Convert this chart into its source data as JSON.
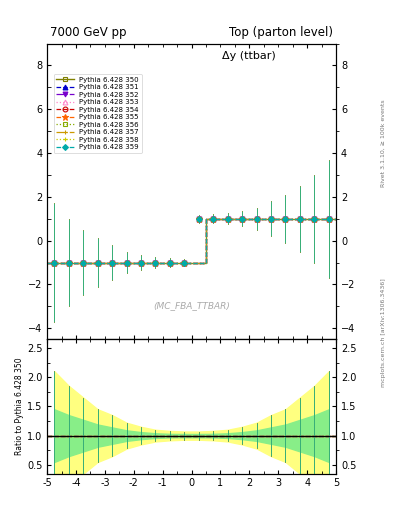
{
  "title_left": "7000 GeV pp",
  "title_right": "Top (parton level)",
  "plot_title": "Δy (ttbar)",
  "watermark": "(MC_FBA_TTBAR)",
  "right_label_top": "Rivet 3.1.10, ≥ 100k events",
  "right_label_bot": "mcplots.cern.ch [arXiv:1306.3436]",
  "ylabel_ratio": "Ratio to Pythia 6.428 350",
  "xlim": [
    -5,
    5
  ],
  "ylim_main": [
    -4.5,
    9.0
  ],
  "ylim_ratio": [
    0.35,
    2.65
  ],
  "yticks_main": [
    -4,
    -2,
    0,
    2,
    4,
    6,
    8
  ],
  "yticks_ratio": [
    0.5,
    1.0,
    1.5,
    2.0,
    2.5
  ],
  "xticks": [
    -5,
    -4,
    -3,
    -2,
    -1,
    0,
    1,
    2,
    3,
    4,
    5
  ],
  "series": [
    {
      "label": "Pythia 6.428 350",
      "color": "#808000",
      "lw": 1.0,
      "ls": "-",
      "marker": "s",
      "mfc": "none",
      "ms": 3.5,
      "mew": 0.8
    },
    {
      "label": "Pythia 6.428 351",
      "color": "#0000cc",
      "lw": 0.9,
      "ls": "--",
      "marker": "^",
      "mfc": "#0000cc",
      "ms": 3.5,
      "mew": 0.8
    },
    {
      "label": "Pythia 6.428 352",
      "color": "#7700cc",
      "lw": 0.9,
      "ls": "-.",
      "marker": "v",
      "mfc": "#7700cc",
      "ms": 3.5,
      "mew": 0.8
    },
    {
      "label": "Pythia 6.428 353",
      "color": "#ff88cc",
      "lw": 0.9,
      "ls": ":",
      "marker": "^",
      "mfc": "none",
      "ms": 3.5,
      "mew": 0.8
    },
    {
      "label": "Pythia 6.428 354",
      "color": "#cc0000",
      "lw": 0.9,
      "ls": "--",
      "marker": "o",
      "mfc": "none",
      "ms": 3.5,
      "mew": 0.8
    },
    {
      "label": "Pythia 6.428 355",
      "color": "#ff6600",
      "lw": 0.9,
      "ls": "--",
      "marker": "*",
      "mfc": "#ff6600",
      "ms": 4.5,
      "mew": 0.8
    },
    {
      "label": "Pythia 6.428 356",
      "color": "#88aa00",
      "lw": 0.9,
      "ls": ":",
      "marker": "s",
      "mfc": "none",
      "ms": 3.5,
      "mew": 0.8
    },
    {
      "label": "Pythia 6.428 357",
      "color": "#cc9900",
      "lw": 0.9,
      "ls": "-.",
      "marker": "+",
      "mfc": "#cc9900",
      "ms": 3.5,
      "mew": 0.8
    },
    {
      "label": "Pythia 6.428 358",
      "color": "#cccc00",
      "lw": 0.9,
      "ls": ":",
      "marker": "+",
      "mfc": "#cccc00",
      "ms": 3.5,
      "mew": 0.8
    },
    {
      "label": "Pythia 6.428 359",
      "color": "#00aaaa",
      "lw": 0.9,
      "ls": "--",
      "marker": "D",
      "mfc": "#00aaaa",
      "ms": 3.0,
      "mew": 0.8
    }
  ],
  "bin_edges": [
    -5.0,
    -4.5,
    -4.0,
    -3.5,
    -3.0,
    -2.5,
    -2.0,
    -1.5,
    -1.0,
    -0.5,
    0.0,
    0.5,
    1.0,
    1.5,
    2.0,
    2.5,
    3.0,
    3.5,
    4.0,
    4.5,
    5.0
  ],
  "main_values": [
    -1,
    -1,
    -1,
    -1,
    -1,
    -1,
    -1,
    -1,
    -1,
    -1,
    1,
    1,
    1,
    1,
    1,
    1,
    1,
    1,
    1,
    1
  ],
  "err_main": [
    2.7,
    2.0,
    1.5,
    1.1,
    0.8,
    0.5,
    0.35,
    0.25,
    0.2,
    0.18,
    0.18,
    0.2,
    0.25,
    0.35,
    0.5,
    0.8,
    1.1,
    1.5,
    2.0,
    2.7
  ],
  "err_ratio": [
    1.1,
    0.85,
    0.65,
    0.45,
    0.35,
    0.22,
    0.15,
    0.1,
    0.08,
    0.07,
    0.07,
    0.08,
    0.1,
    0.15,
    0.22,
    0.35,
    0.45,
    0.65,
    0.85,
    1.1
  ],
  "yellow_band": [
    1.1,
    0.85,
    0.65,
    0.45,
    0.35,
    0.22,
    0.15,
    0.1,
    0.08,
    0.07,
    0.07,
    0.08,
    0.1,
    0.15,
    0.22,
    0.35,
    0.45,
    0.65,
    0.85,
    1.1
  ],
  "green_band": [
    0.45,
    0.35,
    0.27,
    0.19,
    0.14,
    0.09,
    0.06,
    0.04,
    0.03,
    0.028,
    0.028,
    0.03,
    0.04,
    0.06,
    0.09,
    0.14,
    0.19,
    0.27,
    0.35,
    0.45
  ]
}
